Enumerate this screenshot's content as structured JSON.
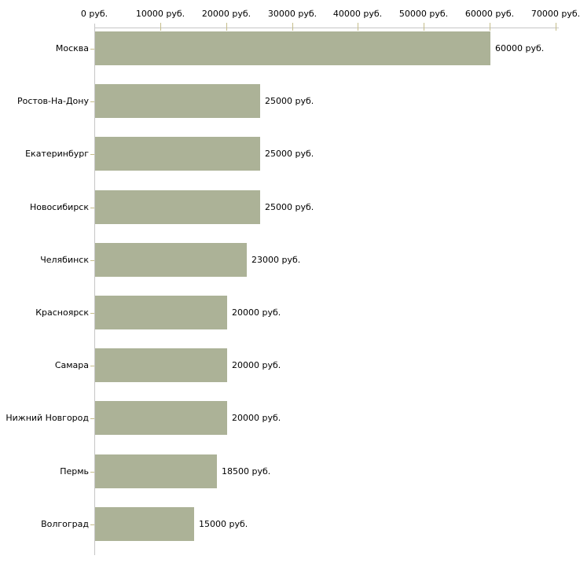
{
  "chart_data": {
    "type": "bar",
    "orientation": "horizontal",
    "title": "",
    "xlabel": "",
    "ylabel": "",
    "grid": false,
    "legend": null,
    "categories": [
      "Москва",
      "Ростов-На-Дону",
      "Екатеринбург",
      "Новосибирск",
      "Челябинск",
      "Красноярск",
      "Самара",
      "Нижний Новгород",
      "Пермь",
      "Волгоград"
    ],
    "values": [
      60000,
      25000,
      25000,
      25000,
      23000,
      20000,
      20000,
      20000,
      18500,
      15000
    ],
    "value_labels": [
      "60000 руб.",
      "25000 руб.",
      "25000 руб.",
      "25000 руб.",
      "23000 руб.",
      "20000 руб.",
      "20000 руб.",
      "20000 руб.",
      "18500 руб.",
      "15000 руб."
    ],
    "x_ticks": [
      0,
      10000,
      20000,
      30000,
      40000,
      50000,
      60000,
      70000
    ],
    "x_tick_labels": [
      "0 руб.",
      "10000 руб.",
      "20000 руб.",
      "30000 руб.",
      "40000 руб.",
      "50000 руб.",
      "60000 руб.",
      "70000 руб."
    ],
    "xlim": [
      0,
      70000
    ],
    "unit": "руб.",
    "colors": {
      "bar": "#acb297",
      "axis": "#c6c6c6",
      "tick": "#c5bd8a",
      "text": "#000000",
      "background": "#ffffff"
    }
  }
}
